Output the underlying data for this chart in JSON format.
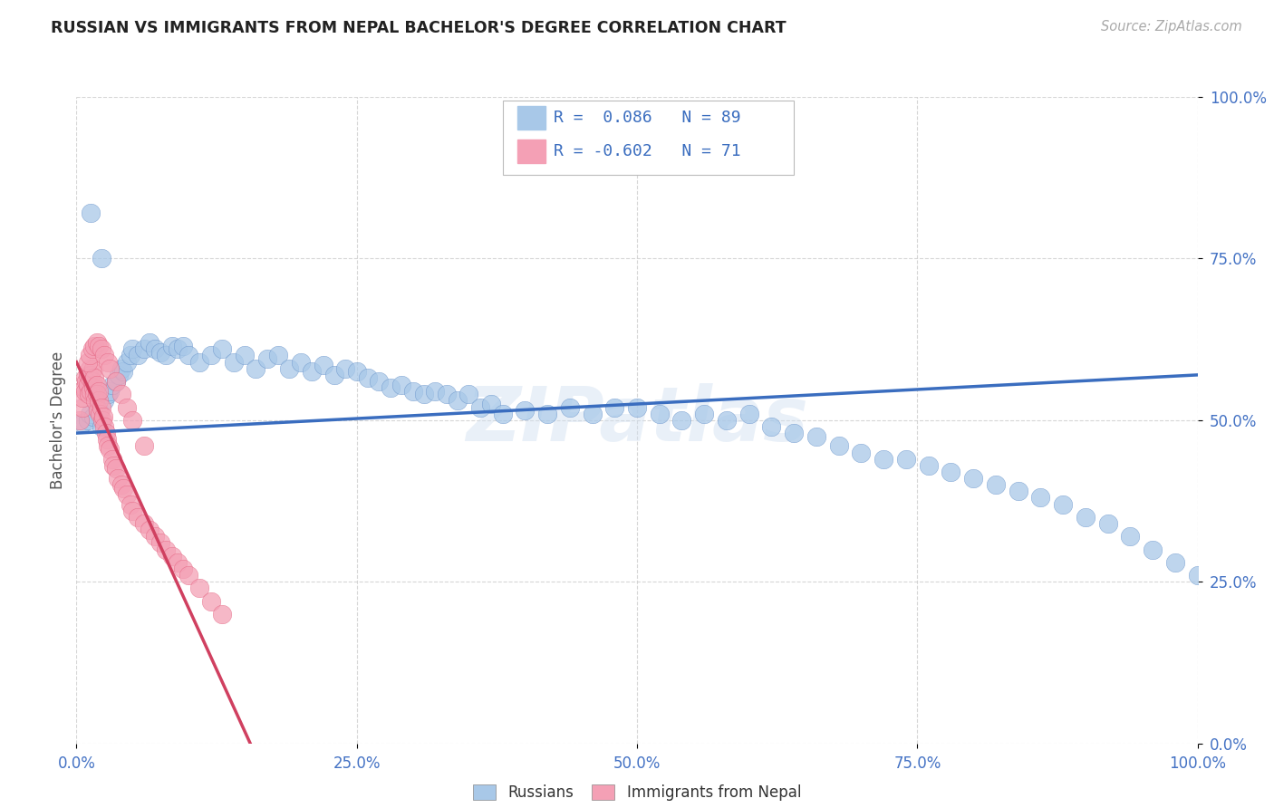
{
  "title": "RUSSIAN VS IMMIGRANTS FROM NEPAL BACHELOR'S DEGREE CORRELATION CHART",
  "source": "Source: ZipAtlas.com",
  "ylabel": "Bachelor's Degree",
  "legend_label1": "Russians",
  "legend_label2": "Immigrants from Nepal",
  "watermark": "ZIPatlas",
  "color_blue": "#A8C8E8",
  "color_pink": "#F4A0B5",
  "color_blue_dark": "#5080C0",
  "color_pink_dark": "#E05070",
  "color_blue_line": "#3A6DBF",
  "color_pink_line": "#D04060",
  "color_axis_ticks": "#4472C4",
  "color_source": "#AAAAAA",
  "blue_scatter_x": [
    0.005,
    0.01,
    0.012,
    0.015,
    0.018,
    0.02,
    0.022,
    0.025,
    0.028,
    0.03,
    0.032,
    0.035,
    0.038,
    0.04,
    0.042,
    0.045,
    0.048,
    0.05,
    0.055,
    0.06,
    0.065,
    0.07,
    0.075,
    0.08,
    0.085,
    0.09,
    0.095,
    0.1,
    0.11,
    0.12,
    0.13,
    0.14,
    0.15,
    0.16,
    0.17,
    0.18,
    0.19,
    0.2,
    0.21,
    0.22,
    0.23,
    0.24,
    0.25,
    0.26,
    0.27,
    0.28,
    0.29,
    0.3,
    0.31,
    0.32,
    0.33,
    0.34,
    0.35,
    0.36,
    0.37,
    0.38,
    0.4,
    0.42,
    0.44,
    0.46,
    0.48,
    0.5,
    0.52,
    0.54,
    0.56,
    0.58,
    0.6,
    0.62,
    0.64,
    0.66,
    0.68,
    0.7,
    0.72,
    0.74,
    0.76,
    0.78,
    0.8,
    0.82,
    0.84,
    0.86,
    0.88,
    0.9,
    0.92,
    0.94,
    0.96,
    0.98,
    1.0,
    0.013,
    0.022
  ],
  "blue_scatter_y": [
    0.495,
    0.5,
    0.51,
    0.505,
    0.52,
    0.515,
    0.49,
    0.53,
    0.54,
    0.545,
    0.555,
    0.56,
    0.57,
    0.58,
    0.575,
    0.59,
    0.6,
    0.61,
    0.6,
    0.61,
    0.62,
    0.61,
    0.605,
    0.6,
    0.615,
    0.61,
    0.615,
    0.6,
    0.59,
    0.6,
    0.61,
    0.59,
    0.6,
    0.58,
    0.595,
    0.6,
    0.58,
    0.59,
    0.575,
    0.585,
    0.57,
    0.58,
    0.575,
    0.565,
    0.56,
    0.55,
    0.555,
    0.545,
    0.54,
    0.545,
    0.54,
    0.53,
    0.54,
    0.52,
    0.525,
    0.51,
    0.515,
    0.51,
    0.52,
    0.51,
    0.52,
    0.52,
    0.51,
    0.5,
    0.51,
    0.5,
    0.51,
    0.49,
    0.48,
    0.475,
    0.46,
    0.45,
    0.44,
    0.44,
    0.43,
    0.42,
    0.41,
    0.4,
    0.39,
    0.38,
    0.37,
    0.35,
    0.34,
    0.32,
    0.3,
    0.28,
    0.26,
    0.82,
    0.75
  ],
  "pink_scatter_x": [
    0.003,
    0.005,
    0.005,
    0.007,
    0.008,
    0.008,
    0.009,
    0.01,
    0.01,
    0.011,
    0.012,
    0.012,
    0.013,
    0.013,
    0.014,
    0.015,
    0.015,
    0.016,
    0.016,
    0.017,
    0.018,
    0.018,
    0.019,
    0.02,
    0.02,
    0.021,
    0.022,
    0.023,
    0.024,
    0.025,
    0.026,
    0.027,
    0.028,
    0.03,
    0.032,
    0.033,
    0.035,
    0.037,
    0.04,
    0.042,
    0.045,
    0.048,
    0.05,
    0.055,
    0.06,
    0.065,
    0.07,
    0.075,
    0.08,
    0.085,
    0.09,
    0.095,
    0.1,
    0.11,
    0.12,
    0.13,
    0.01,
    0.012,
    0.014,
    0.016,
    0.018,
    0.02,
    0.022,
    0.025,
    0.028,
    0.03,
    0.035,
    0.04,
    0.045,
    0.05,
    0.06
  ],
  "pink_scatter_y": [
    0.5,
    0.52,
    0.535,
    0.55,
    0.565,
    0.545,
    0.56,
    0.57,
    0.555,
    0.54,
    0.565,
    0.58,
    0.545,
    0.57,
    0.56,
    0.55,
    0.58,
    0.54,
    0.565,
    0.53,
    0.555,
    0.54,
    0.515,
    0.53,
    0.545,
    0.51,
    0.52,
    0.5,
    0.505,
    0.49,
    0.48,
    0.47,
    0.46,
    0.455,
    0.44,
    0.43,
    0.425,
    0.41,
    0.4,
    0.395,
    0.385,
    0.37,
    0.36,
    0.35,
    0.34,
    0.33,
    0.32,
    0.31,
    0.3,
    0.29,
    0.28,
    0.27,
    0.26,
    0.24,
    0.22,
    0.2,
    0.59,
    0.6,
    0.61,
    0.615,
    0.62,
    0.615,
    0.61,
    0.6,
    0.59,
    0.58,
    0.56,
    0.54,
    0.52,
    0.5,
    0.46
  ],
  "blue_line_x": [
    0.0,
    1.0
  ],
  "blue_line_y": [
    0.48,
    0.57
  ],
  "pink_line_x": [
    0.0,
    0.155
  ],
  "pink_line_y": [
    0.59,
    0.0
  ],
  "xlim": [
    0.0,
    1.0
  ],
  "ylim": [
    0.0,
    1.0
  ],
  "xticks": [
    0.0,
    0.25,
    0.5,
    0.75,
    1.0
  ],
  "yticks": [
    0.0,
    0.25,
    0.5,
    0.75,
    1.0
  ],
  "xticklabels": [
    "0.0%",
    "25.0%",
    "50.0%",
    "75.0%",
    "100.0%"
  ],
  "yticklabels": [
    "0.0%",
    "25.0%",
    "50.0%",
    "75.0%",
    "100.0%"
  ]
}
